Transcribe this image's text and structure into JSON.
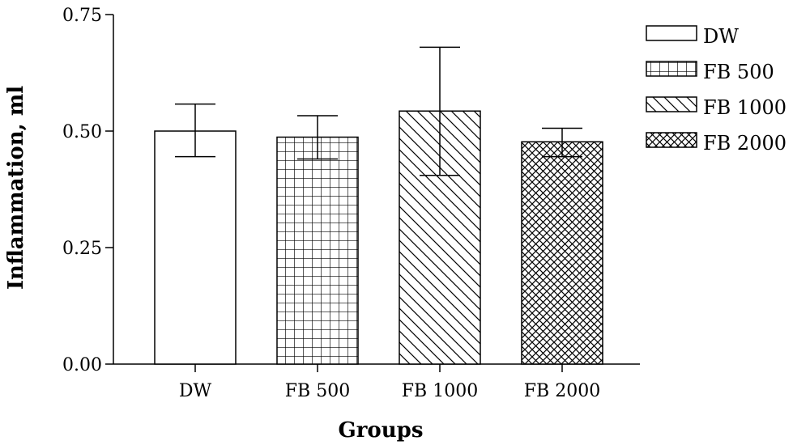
{
  "chart_data": {
    "type": "bar",
    "title": "",
    "xlabel": "Groups",
    "ylabel": "Inflammation, ml",
    "ylim": [
      0,
      0.75
    ],
    "yticks": [
      "0.00",
      "0.25",
      "0.50",
      "0.75"
    ],
    "yticks_values": [
      0,
      0.25,
      0.5,
      0.75
    ],
    "categories": [
      "DW",
      "FB 500",
      "FB 1000",
      "FB 2000"
    ],
    "values": [
      0.5,
      0.487,
      0.543,
      0.477
    ],
    "error_upper": [
      0.558,
      0.533,
      0.68,
      0.506
    ],
    "error_lower": [
      0.445,
      0.44,
      0.405,
      0.445
    ],
    "patterns": [
      "none",
      "grid",
      "diagonal",
      "crosshatch"
    ],
    "legend": {
      "placement": "top-right",
      "entries": [
        "DW",
        "FB 500",
        "FB 1000",
        "FB 2000"
      ]
    },
    "grid": false
  }
}
